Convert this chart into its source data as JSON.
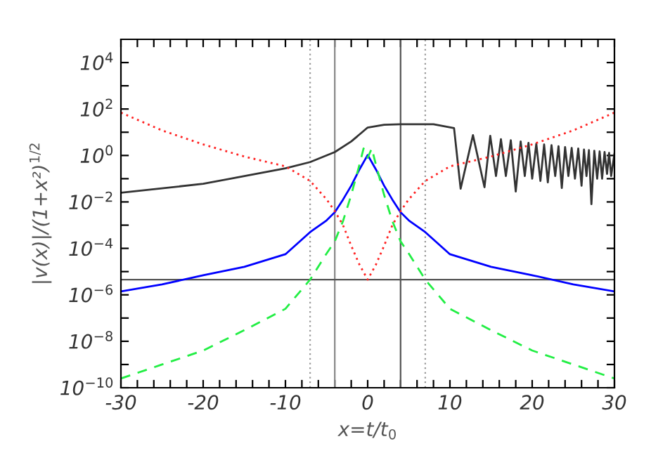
{
  "chart_data": {
    "type": "line",
    "log": "y",
    "xlabel": "x=t/t$_{0}$",
    "ylabel": "|v(x)|/(1+x²)$^{1/2}$",
    "xlim": [
      -30,
      30
    ],
    "ylim": [
      1e-10,
      100000.0
    ],
    "xticks": [
      -30,
      {
        "value": -28,
        "label": null
      },
      {
        "value": -26,
        "label": null
      },
      {
        "value": -24,
        "label": null
      },
      {
        "value": -22,
        "label": null
      },
      -20,
      {
        "value": -18,
        "label": null
      },
      {
        "value": -16,
        "label": null
      },
      {
        "value": -14,
        "label": null
      },
      {
        "value": -12,
        "label": null
      },
      -10,
      {
        "value": -8,
        "label": null
      },
      {
        "value": -6,
        "label": null
      },
      {
        "value": -4,
        "label": null
      },
      {
        "value": -2,
        "label": null
      },
      0,
      {
        "value": 2,
        "label": null
      },
      {
        "value": 4,
        "label": null
      },
      {
        "value": 6,
        "label": null
      },
      {
        "value": 8,
        "label": null
      },
      10,
      {
        "value": 12,
        "label": null
      },
      {
        "value": 14,
        "label": null
      },
      {
        "value": 16,
        "label": null
      },
      {
        "value": 18,
        "label": null
      },
      20,
      {
        "value": 22,
        "label": null
      },
      {
        "value": 24,
        "label": null
      },
      {
        "value": 26,
        "label": null
      },
      {
        "value": 28,
        "label": null
      },
      30
    ],
    "yticks": [
      {
        "value": 1e-10,
        "label": "10$^{−10}$"
      },
      {
        "value": 1e-09,
        "label": null
      },
      {
        "value": 1e-08,
        "label": "10$^{−8}$"
      },
      {
        "value": 1e-07,
        "label": null
      },
      {
        "value": 1e-06,
        "label": "10$^{−6}$"
      },
      {
        "value": 1e-05,
        "label": null
      },
      {
        "value": 0.0001,
        "label": "10$^{−4}$"
      },
      {
        "value": 0.001,
        "label": null
      },
      {
        "value": 0.01,
        "label": "10$^{−2}$"
      },
      {
        "value": 0.1,
        "label": null
      },
      {
        "value": 1,
        "label": "10$^{0}$"
      },
      {
        "value": 10,
        "label": null
      },
      {
        "value": 100,
        "label": "10$^{2}$"
      },
      {
        "value": 1000,
        "label": null
      },
      {
        "value": 10000,
        "label": "10$^{4}$"
      }
    ],
    "grid": false,
    "legend": false,
    "ref_lines": [
      {
        "axis": "x",
        "value": -7,
        "label": null,
        "color": "#999999",
        "line_style": "dotted"
      },
      {
        "axis": "x",
        "value": -4,
        "label": null,
        "color": "#888888",
        "line_style": "solid"
      },
      {
        "axis": "x",
        "value": 4,
        "label": null,
        "color": "#555555",
        "line_style": "solid"
      },
      {
        "axis": "x",
        "value": 7,
        "label": null,
        "color": "#999999",
        "line_style": "dotted"
      },
      {
        "axis": "y",
        "value": 4.5e-06,
        "label": null,
        "color": "#555555",
        "line_style": "solid"
      }
    ],
    "series": [
      {
        "color": "#333333",
        "line_style": "solid",
        "x": [
          -30,
          -20,
          -10,
          -7,
          -4,
          -2,
          0,
          2,
          4,
          8,
          10.5,
          11.3,
          12.8,
          14.2,
          14.9,
          15.6,
          16.2,
          16.8,
          17.4,
          18.0,
          18.6,
          19.1,
          19.55,
          20.0,
          20.5,
          21.0,
          21.45,
          21.9,
          22.35,
          22.8,
          23.2,
          23.6,
          24.0,
          24.4,
          24.8,
          25.2,
          25.6,
          26.0,
          26.3,
          26.6,
          26.9,
          27.2,
          27.55,
          27.9,
          28.2,
          28.5,
          28.8,
          29.1,
          29.35,
          29.6,
          30
        ],
        "values": [
          0.025,
          0.06,
          0.28,
          0.52,
          1.4,
          4,
          16,
          21,
          22,
          22,
          15,
          0.037,
          7.5,
          0.043,
          7,
          0.13,
          5,
          0.13,
          4.5,
          0.028,
          4,
          0.13,
          3.5,
          0.1,
          3.2,
          0.08,
          3,
          0.07,
          2.8,
          0.13,
          2.5,
          0.04,
          2.3,
          0.13,
          2.1,
          0.1,
          2,
          0.05,
          1.8,
          0.13,
          1.7,
          0.008,
          1.6,
          0.1,
          1.5,
          0.1,
          1.4,
          0.16,
          1.3,
          0.13,
          1.2
        ]
      },
      {
        "color": "#0000ff",
        "line_style": "solid",
        "x": [
          -30,
          -25,
          -20,
          -15,
          -10,
          -7,
          -5,
          -4,
          -3,
          -2,
          -1,
          0,
          1,
          2,
          3,
          4,
          5,
          7,
          10,
          15,
          20,
          25,
          30
        ],
        "values": [
          1.4e-06,
          2.8e-06,
          7e-06,
          1.6e-05,
          5.6e-05,
          0.0005,
          0.0016,
          0.0036,
          0.0126,
          0.05,
          0.25,
          1.05,
          0.25,
          0.05,
          0.0126,
          0.0036,
          0.0016,
          0.0005,
          5.6e-05,
          1.6e-05,
          7e-06,
          2.8e-06,
          1.4e-06
        ]
      },
      {
        "color": "#22ee44",
        "line_style": "dashed",
        "x": [
          -30,
          -25,
          -20,
          -15,
          -10,
          -7,
          -5,
          -4,
          -3,
          -2,
          -1,
          -0.5,
          0,
          0.5,
          1,
          2,
          3,
          4,
          5,
          7,
          10,
          15,
          20,
          25,
          30
        ],
        "values": [
          2.5e-10,
          1e-09,
          4e-09,
          3e-08,
          2.5e-07,
          4.5e-06,
          6e-05,
          0.0002,
          0.0015,
          0.02,
          0.4,
          2,
          0.8,
          2,
          0.4,
          0.02,
          0.0015,
          0.0002,
          6e-05,
          4.5e-06,
          2.5e-07,
          3e-08,
          4e-09,
          1e-09,
          2.5e-10
        ]
      },
      {
        "color": "#ff2222",
        "line_style": "dotted",
        "x": [
          -30,
          -25,
          -20,
          -15,
          -10,
          -7,
          -5,
          -4,
          -3,
          -2,
          -1,
          0,
          1,
          2,
          3,
          4,
          5,
          7,
          10,
          15,
          20,
          25,
          30
        ],
        "values": [
          70,
          12,
          3,
          0.9,
          0.34,
          0.08,
          0.013,
          0.004,
          0.001,
          0.00013,
          2e-05,
          4.5e-06,
          2e-05,
          0.00013,
          0.001,
          0.004,
          0.013,
          0.08,
          0.34,
          0.9,
          3,
          12,
          70
        ]
      }
    ]
  }
}
